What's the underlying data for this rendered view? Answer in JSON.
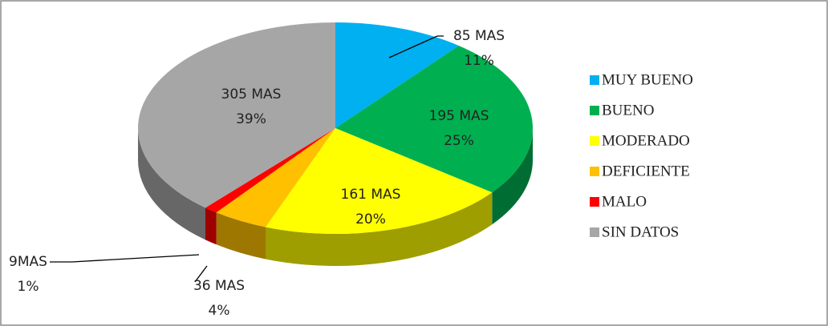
{
  "chart_data": {
    "type": "pie3d",
    "categories": [
      "MUY BUENO",
      "BUENO",
      "MODERADO",
      "DEFICIENTE",
      "MALO",
      "SIN DATOS"
    ],
    "values": [
      85,
      195,
      161,
      36,
      9,
      305
    ],
    "value_labels": [
      "85 MAS",
      "195 MAS",
      "161 MAS",
      "36 MAS",
      "9MAS",
      "305 MAS"
    ],
    "percents": [
      11,
      25,
      20,
      4,
      1,
      39
    ],
    "percent_labels": [
      "11%",
      "25%",
      "20%",
      "4%",
      "1%",
      "39%"
    ],
    "colors": [
      "#00b0f0",
      "#00b050",
      "#ffff00",
      "#ffc000",
      "#ff0000",
      "#a6a6a6"
    ],
    "legend": "right"
  }
}
